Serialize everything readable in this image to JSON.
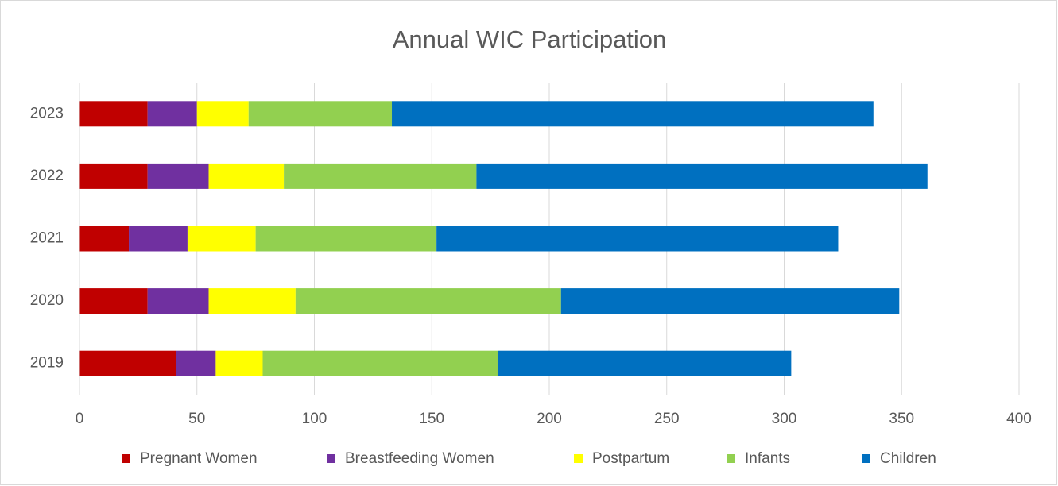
{
  "chart_data": {
    "type": "stacked_bar_horizontal",
    "title": "Annual WIC Participation",
    "categories": [
      "2019",
      "2020",
      "2021",
      "2022",
      "2023"
    ],
    "series": [
      {
        "name": "Pregnant Women",
        "color": "#c00000",
        "values": [
          41,
          29,
          21,
          29,
          29
        ]
      },
      {
        "name": "Breastfeeding Women",
        "color": "#7030a0",
        "values": [
          17,
          26,
          25,
          26,
          21
        ]
      },
      {
        "name": "Postpartum",
        "color": "#ffff00",
        "values": [
          20,
          37,
          29,
          32,
          22
        ]
      },
      {
        "name": "Infants",
        "color": "#92d050",
        "values": [
          100,
          113,
          77,
          82,
          61
        ]
      },
      {
        "name": "Children",
        "color": "#0070c0",
        "values": [
          125,
          144,
          171,
          192,
          205
        ]
      }
    ],
    "xlim": [
      0,
      400
    ],
    "xticks": [
      0,
      50,
      100,
      150,
      200,
      250,
      300,
      350,
      400
    ],
    "grid": true,
    "legend": "bottom"
  }
}
